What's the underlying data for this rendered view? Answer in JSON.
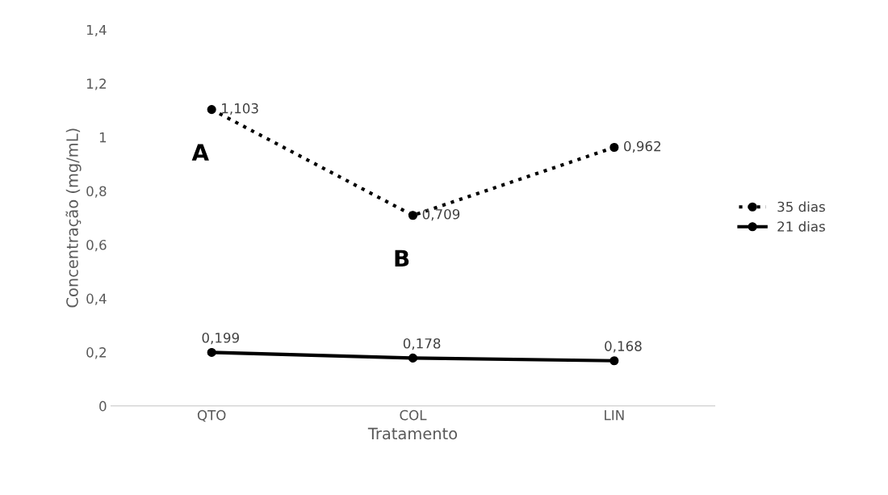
{
  "chart_data": {
    "type": "line",
    "xlabel": "Tratamento",
    "ylabel": "Concentração (mg/mL)",
    "categories": [
      "QTO",
      "COL",
      "LIN"
    ],
    "series": [
      {
        "name": "35 dias",
        "color": "#000000",
        "line_style": "dotted",
        "values": [
          1.103,
          0.709,
          0.962
        ],
        "value_labels": [
          "1,103",
          "0,709",
          "0,962"
        ]
      },
      {
        "name": "21 dias",
        "color": "#000000",
        "line_style": "solid",
        "values": [
          0.199,
          0.178,
          0.168
        ],
        "value_labels": [
          "0,199",
          "0,178",
          "0,168"
        ]
      }
    ],
    "ylim": [
      0,
      1.4
    ],
    "yticks": [
      0,
      {
        "value": 0.2,
        "label": "0,2"
      },
      {
        "value": 0.4,
        "label": "0,4"
      },
      {
        "value": 0.6,
        "label": "0,6"
      },
      {
        "value": 0.8,
        "label": "0,8"
      },
      1,
      {
        "value": 1.2,
        "label": "1,2"
      },
      {
        "value": 1.4,
        "label": "1,4"
      }
    ],
    "annotations": [
      "A",
      "B"
    ],
    "marker": "circle",
    "legend": "right",
    "grid": false
  }
}
